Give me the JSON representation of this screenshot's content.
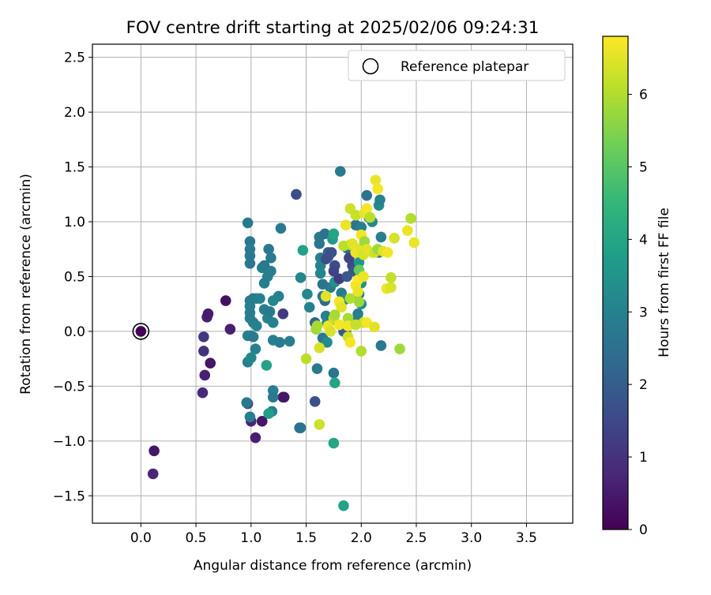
{
  "chart_data": {
    "type": "scatter",
    "title": "FOV centre drift starting at 2025/02/06 09:24:31",
    "xlabel": "Angular distance from reference (arcmin)",
    "ylabel": "Rotation from reference (arcmin)",
    "xlim": [
      -0.44,
      3.92
    ],
    "ylim": [
      -1.75,
      2.62
    ],
    "xticks": [
      "0.0",
      "0.5",
      "1.0",
      "1.5",
      "2.0",
      "2.5",
      "3.0",
      "3.5"
    ],
    "xtick_values": [
      0,
      0.5,
      1.0,
      1.5,
      2.0,
      2.5,
      3.0,
      3.5
    ],
    "yticks": [
      "−1.5",
      "−1.0",
      "−0.5",
      "0.0",
      "0.5",
      "1.0",
      "1.5",
      "2.0",
      "2.5"
    ],
    "ytick_values": [
      -1.5,
      -1.0,
      -0.5,
      0,
      0.5,
      1.0,
      1.5,
      2.0,
      2.5
    ],
    "grid": true,
    "legend": {
      "position": "top-right",
      "entries": [
        "Reference platepar"
      ]
    },
    "colorbar": {
      "label": "Hours from first FF file",
      "colormap": "viridis",
      "range": [
        0,
        6.8
      ],
      "ticks": [
        "0",
        "1",
        "2",
        "3",
        "4",
        "5",
        "6"
      ],
      "tick_values": [
        0,
        1,
        2,
        3,
        4,
        5,
        6
      ]
    },
    "reference_point": {
      "x": 0.0,
      "y": 0.0
    },
    "points": [
      [
        0.0,
        0.0,
        0.05
      ],
      [
        0.12,
        -1.09,
        0.4
      ],
      [
        0.11,
        -1.3,
        0.7
      ],
      [
        0.57,
        -0.05,
        1.1
      ],
      [
        0.57,
        -0.18,
        1.0
      ],
      [
        0.56,
        -0.56,
        0.8
      ],
      [
        0.58,
        -0.4,
        0.6
      ],
      [
        0.6,
        0.13,
        0.6
      ],
      [
        0.61,
        0.16,
        0.5
      ],
      [
        0.63,
        -0.29,
        0.4
      ],
      [
        0.77,
        0.28,
        0.3
      ],
      [
        0.81,
        0.02,
        0.6
      ],
      [
        0.97,
        -0.66,
        1.3
      ],
      [
        1.0,
        -0.82,
        0.7
      ],
      [
        1.04,
        -0.97,
        0.6
      ],
      [
        1.1,
        -0.82,
        0.4
      ],
      [
        1.29,
        -0.6,
        0.5
      ],
      [
        1.29,
        0.16,
        1.2
      ],
      [
        1.41,
        1.25,
        1.6
      ],
      [
        1.58,
        -0.64,
        1.7
      ],
      [
        0.97,
        0.99,
        2.8
      ],
      [
        0.99,
        0.82,
        2.7
      ],
      [
        0.99,
        0.75,
        2.9
      ],
      [
        0.99,
        0.69,
        2.8
      ],
      [
        0.99,
        0.62,
        2.7
      ],
      [
        1.1,
        0.58,
        2.9
      ],
      [
        1.12,
        0.6,
        2.8
      ],
      [
        1.15,
        0.5,
        2.9
      ],
      [
        1.16,
        0.75,
        2.7
      ],
      [
        1.18,
        0.67,
        2.8
      ],
      [
        1.18,
        0.55,
        2.9
      ],
      [
        1.12,
        0.44,
        2.9
      ],
      [
        1.27,
        0.94,
        2.8
      ],
      [
        1.25,
        0.32,
        3.0
      ],
      [
        1.2,
        0.28,
        3.1
      ],
      [
        0.99,
        0.28,
        2.8
      ],
      [
        0.99,
        0.23,
        3.0
      ],
      [
        1.02,
        0.3,
        2.8
      ],
      [
        1.05,
        0.3,
        2.9
      ],
      [
        1.08,
        0.3,
        3.0
      ],
      [
        0.99,
        0.17,
        2.9
      ],
      [
        0.99,
        0.12,
        2.9
      ],
      [
        1.02,
        0.08,
        2.9
      ],
      [
        1.05,
        0.05,
        3.0
      ],
      [
        0.97,
        -0.04,
        2.9
      ],
      [
        1.0,
        -0.04,
        2.9
      ],
      [
        1.02,
        -0.05,
        2.8
      ],
      [
        1.04,
        -0.16,
        3.0
      ],
      [
        0.97,
        -0.28,
        3.0
      ],
      [
        1.0,
        -0.24,
        3.1
      ],
      [
        0.96,
        -0.65,
        2.8
      ],
      [
        0.99,
        -0.78,
        2.9
      ],
      [
        1.12,
        0.2,
        2.9
      ],
      [
        1.15,
        0.12,
        3.0
      ],
      [
        1.17,
        0.18,
        2.8
      ],
      [
        1.2,
        0.08,
        3.0
      ],
      [
        1.2,
        -0.08,
        2.9
      ],
      [
        1.26,
        -0.1,
        2.8
      ],
      [
        1.35,
        -0.09,
        2.9
      ],
      [
        1.2,
        -0.54,
        2.9
      ],
      [
        1.2,
        -0.6,
        2.8
      ],
      [
        1.19,
        -0.73,
        2.9
      ],
      [
        1.16,
        -0.75,
        3.8
      ],
      [
        1.14,
        -0.31,
        3.9
      ],
      [
        1.44,
        -0.88,
        2.7
      ],
      [
        1.45,
        -0.88,
        2.6
      ],
      [
        1.45,
        0.49,
        3.1
      ],
      [
        1.47,
        0.74,
        3.9
      ],
      [
        1.51,
        0.34,
        3.2
      ],
      [
        1.53,
        0.22,
        3.0
      ],
      [
        1.6,
        -0.34,
        2.8
      ],
      [
        1.62,
        0.86,
        2.8
      ],
      [
        1.62,
        0.8,
        2.7
      ],
      [
        1.63,
        0.67,
        2.9
      ],
      [
        1.63,
        0.6,
        3.0
      ],
      [
        1.63,
        0.53,
        3.1
      ],
      [
        1.65,
        0.43,
        2.6
      ],
      [
        1.67,
        0.89,
        2.6
      ],
      [
        1.7,
        0.72,
        2.0
      ],
      [
        1.7,
        0.68,
        2.1
      ],
      [
        1.72,
        0.4,
        2.8
      ],
      [
        1.74,
        0.84,
        3.7
      ],
      [
        1.75,
        0.89,
        4.0
      ],
      [
        1.76,
        0.6,
        1.6
      ],
      [
        1.76,
        0.45,
        3.4
      ],
      [
        1.67,
        0.28,
        2.3
      ],
      [
        1.65,
        0.32,
        2.6
      ],
      [
        1.68,
        0.14,
        2.9
      ],
      [
        1.69,
        0.08,
        3.3
      ],
      [
        1.72,
        0.1,
        2.7
      ],
      [
        1.65,
        -0.06,
        2.8
      ],
      [
        1.69,
        -0.1,
        3.3
      ],
      [
        1.75,
        -0.38,
        2.7
      ],
      [
        1.76,
        -0.47,
        4.0
      ],
      [
        1.75,
        -1.02,
        4.0
      ],
      [
        1.84,
        -1.59,
        3.9
      ],
      [
        1.81,
        1.46,
        2.8
      ],
      [
        1.82,
        0.35,
        2.8
      ],
      [
        1.84,
        0.0,
        2.0
      ],
      [
        1.85,
        0.29,
        3.4
      ],
      [
        1.86,
        0.0,
        1.9
      ],
      [
        1.87,
        0.76,
        2.5
      ],
      [
        1.89,
        0.67,
        1.4
      ],
      [
        1.92,
        0.6,
        1.5
      ],
      [
        1.93,
        0.55,
        1.8
      ],
      [
        1.95,
        0.97,
        2.6
      ],
      [
        1.96,
        0.1,
        2.6
      ],
      [
        1.97,
        0.16,
        2.9
      ],
      [
        1.98,
        0.63,
        3.6
      ],
      [
        2.0,
        0.44,
        3.5
      ],
      [
        1.98,
        0.34,
        3.0
      ],
      [
        2.0,
        0.25,
        3.3
      ],
      [
        2.0,
        0.95,
        3.0
      ],
      [
        2.05,
        1.24,
        2.6
      ],
      [
        2.07,
        1.04,
        3.2
      ],
      [
        2.1,
        1.0,
        3.2
      ],
      [
        2.16,
        1.15,
        3.2
      ],
      [
        2.17,
        1.2,
        3.0
      ],
      [
        2.18,
        0.86,
        2.9
      ],
      [
        2.18,
        -0.13,
        2.8
      ],
      [
        2.16,
        0.72,
        2.8
      ],
      [
        1.3,
        -0.6,
        0.4
      ],
      [
        1.68,
        0.66,
        1.6
      ],
      [
        1.75,
        0.55,
        1.4
      ],
      [
        1.8,
        0.48,
        1.2
      ],
      [
        1.87,
        0.5,
        1.9
      ],
      [
        1.73,
        0.72,
        1.7
      ],
      [
        1.58,
        0.08,
        2.2
      ],
      [
        1.59,
        0.02,
        5.8
      ],
      [
        1.6,
        0.05,
        5.9
      ],
      [
        1.62,
        -0.15,
        6.4
      ],
      [
        1.62,
        -0.85,
        6.3
      ],
      [
        1.5,
        -0.25,
        6.1
      ],
      [
        1.68,
        0.32,
        6.5
      ],
      [
        1.7,
        0.05,
        6.6
      ],
      [
        1.72,
        0.0,
        6.4
      ],
      [
        1.75,
        0.12,
        6.2
      ],
      [
        1.8,
        0.27,
        6.7
      ],
      [
        1.82,
        0.22,
        6.5
      ],
      [
        1.84,
        0.78,
        6.1
      ],
      [
        1.86,
        0.97,
        6.6
      ],
      [
        1.88,
        0.12,
        5.9
      ],
      [
        1.88,
        0.05,
        6.7
      ],
      [
        1.88,
        -0.05,
        6.3
      ],
      [
        1.9,
        -0.1,
        6.7
      ],
      [
        1.9,
        0.79,
        6.1
      ],
      [
        1.92,
        0.8,
        6.5
      ],
      [
        1.9,
        1.12,
        6.3
      ],
      [
        1.95,
        1.06,
        6.2
      ],
      [
        1.95,
        0.72,
        6.6
      ],
      [
        1.95,
        0.42,
        6.7
      ],
      [
        1.97,
        0.47,
        6.8
      ],
      [
        1.97,
        0.36,
        6.6
      ],
      [
        1.98,
        0.27,
        5.8
      ],
      [
        1.98,
        0.56,
        5.2
      ],
      [
        2.0,
        0.88,
        6.7
      ],
      [
        2.0,
        0.76,
        6.5
      ],
      [
        2.02,
        0.7,
        6.4
      ],
      [
        2.02,
        0.5,
        6.6
      ],
      [
        2.02,
        0.08,
        6.3
      ],
      [
        2.0,
        -0.18,
        6.0
      ],
      [
        2.03,
        1.08,
        6.6
      ],
      [
        2.03,
        0.82,
        5.8
      ],
      [
        2.05,
        0.75,
        6.5
      ],
      [
        2.05,
        0.08,
        6.7
      ],
      [
        2.05,
        1.12,
        6.7
      ],
      [
        2.08,
        1.04,
        6.1
      ],
      [
        2.1,
        0.72,
        6.6
      ],
      [
        2.12,
        0.04,
        6.5
      ],
      [
        2.12,
        0.72,
        6.3
      ],
      [
        2.13,
        1.38,
        6.6
      ],
      [
        2.15,
        1.3,
        6.7
      ],
      [
        2.15,
        0.75,
        5.8
      ],
      [
        2.2,
        0.73,
        6.5
      ],
      [
        2.23,
        0.39,
        6.6
      ],
      [
        2.24,
        0.72,
        6.7
      ],
      [
        2.27,
        0.4,
        6.4
      ],
      [
        2.27,
        0.49,
        6.2
      ],
      [
        2.3,
        0.85,
        6.4
      ],
      [
        2.35,
        -0.16,
        5.8
      ],
      [
        2.42,
        0.92,
        6.6
      ],
      [
        2.45,
        1.03,
        6.0
      ],
      [
        2.48,
        0.81,
        6.6
      ],
      [
        1.9,
        0.3,
        6.0
      ],
      [
        1.95,
        0.06,
        6.2
      ],
      [
        1.8,
        0.06,
        6.7
      ],
      [
        1.76,
        0.15,
        5.9
      ]
    ]
  }
}
